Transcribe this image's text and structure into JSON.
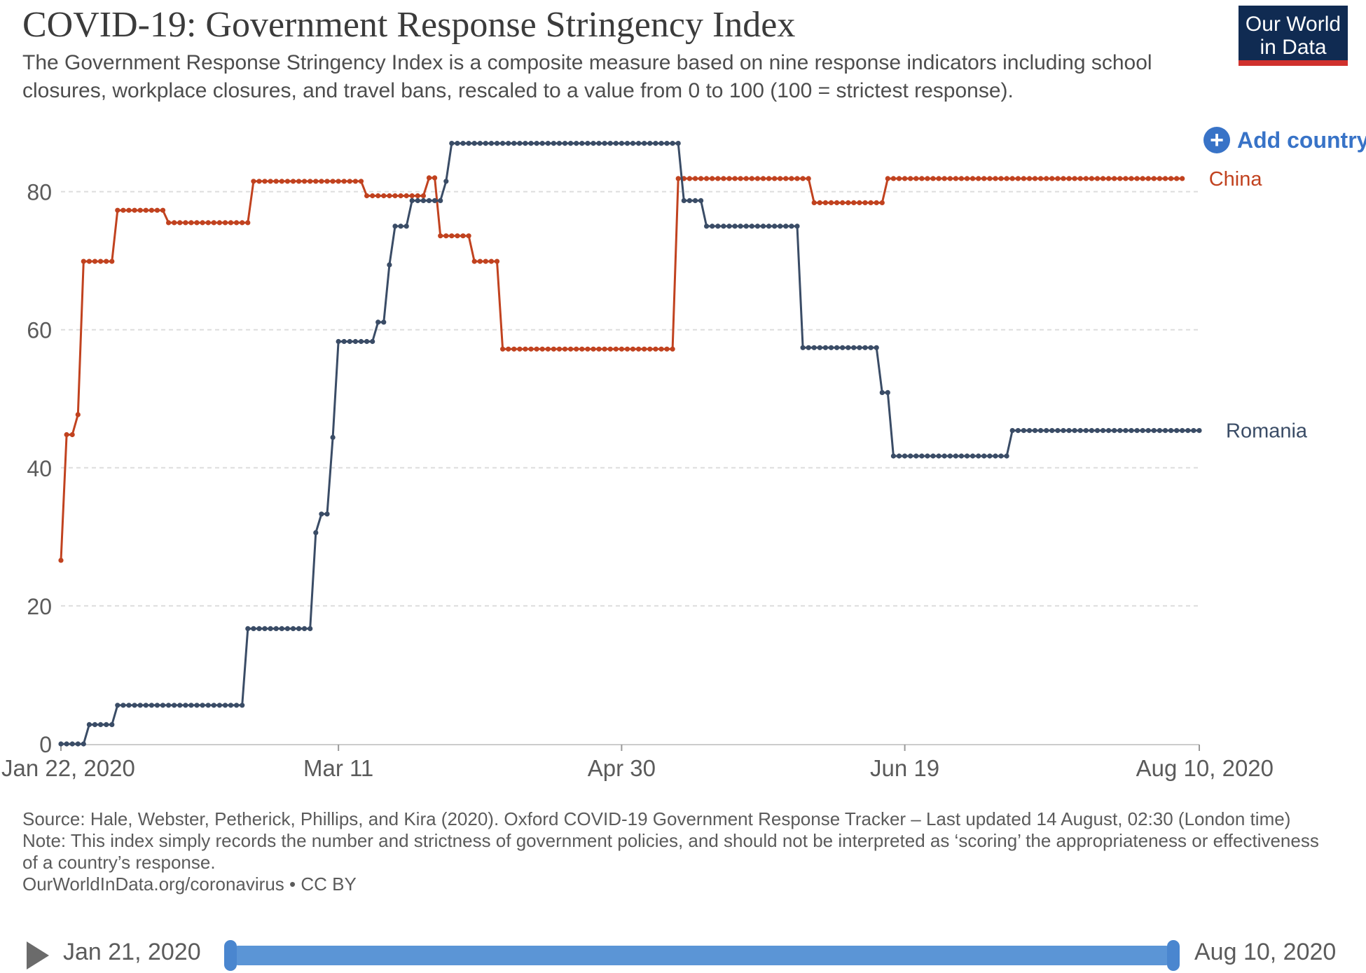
{
  "header": {
    "title": "COVID-19: Government Response Stringency Index",
    "subtitle": "The Government Response Stringency Index is a composite measure based on nine response indicators including school closures, workplace closures, and travel bans, rescaled to a value from 0 to 100 (100 = strictest response).",
    "logo_line1": "Our World",
    "logo_line2": "in Data",
    "add_country_label": "Add country",
    "add_country_icon": "plus-circle-icon"
  },
  "colors": {
    "china": "#c1421f",
    "romania": "#3a4c66",
    "grid": "#dddddd",
    "logo_bg": "#102b52",
    "logo_bar": "#d0312d",
    "accent": "#3873c7"
  },
  "chart_data": {
    "type": "line",
    "x_axis": {
      "type": "date",
      "range": [
        "2020-01-22",
        "2020-08-10"
      ],
      "tick_labels": [
        "Jan 22, 2020",
        "Mar 11",
        "Apr 30",
        "Jun 19",
        "Aug 10, 2020"
      ],
      "tick_dates": [
        "2020-01-22",
        "2020-03-11",
        "2020-04-30",
        "2020-06-19",
        "2020-08-10"
      ]
    },
    "y_axis": {
      "range": [
        0,
        88
      ],
      "ticks": [
        0,
        20,
        40,
        60,
        80
      ],
      "grid": true
    },
    "series": [
      {
        "name": "China",
        "color": "#c1421f",
        "steps": [
          [
            "2020-01-22",
            26.6
          ],
          [
            "2020-01-23",
            44.8
          ],
          [
            "2020-01-25",
            47.7
          ],
          [
            "2020-01-26",
            69.9
          ],
          [
            "2020-02-01",
            77.3
          ],
          [
            "2020-02-10",
            75.5
          ],
          [
            "2020-02-25",
            81.5
          ],
          [
            "2020-03-16",
            79.4
          ],
          [
            "2020-03-27",
            82.0
          ],
          [
            "2020-03-29",
            73.6
          ],
          [
            "2020-04-04",
            69.9
          ],
          [
            "2020-04-09",
            57.2
          ],
          [
            "2020-05-10",
            81.9
          ],
          [
            "2020-06-03",
            78.4
          ],
          [
            "2020-06-16",
            81.9
          ],
          [
            "2020-08-07",
            81.9
          ]
        ]
      },
      {
        "name": "Romania",
        "color": "#3a4c66",
        "steps": [
          [
            "2020-01-22",
            0
          ],
          [
            "2020-01-27",
            2.8
          ],
          [
            "2020-02-01",
            5.6
          ],
          [
            "2020-02-24",
            16.7
          ],
          [
            "2020-03-07",
            30.6
          ],
          [
            "2020-03-08",
            33.3
          ],
          [
            "2020-03-10",
            44.4
          ],
          [
            "2020-03-11",
            58.3
          ],
          [
            "2020-03-18",
            61.1
          ],
          [
            "2020-03-20",
            69.4
          ],
          [
            "2020-03-21",
            75.0
          ],
          [
            "2020-03-24",
            78.7
          ],
          [
            "2020-03-30",
            81.5
          ],
          [
            "2020-03-31",
            87.0
          ],
          [
            "2020-05-11",
            78.7
          ],
          [
            "2020-05-15",
            75.0
          ],
          [
            "2020-06-01",
            57.4
          ],
          [
            "2020-06-15",
            50.9
          ],
          [
            "2020-06-17",
            41.7
          ],
          [
            "2020-07-08",
            45.4
          ],
          [
            "2020-08-10",
            45.4
          ]
        ]
      }
    ],
    "legend": "line-end labels at right"
  },
  "footer": {
    "source": "Source: Hale, Webster, Petherick, Phillips, and Kira (2020). Oxford COVID-19 Government Response Tracker – Last updated 14 August, 02:30 (London time)",
    "note": "Note: This index simply records the number and strictness of government policies, and should not be interpreted as ‘scoring’ the appropriateness or effectiveness of a country’s response.",
    "link": "OurWorldInData.org/coronavirus • CC BY"
  },
  "timeline": {
    "start_label": "Jan 21, 2020",
    "end_label": "Aug 10, 2020",
    "play_icon": "play-icon"
  }
}
